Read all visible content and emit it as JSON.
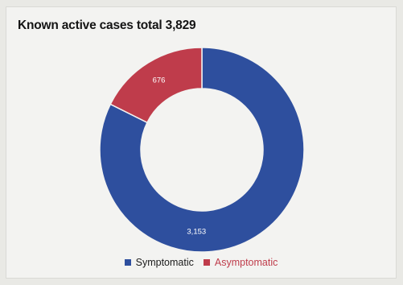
{
  "chart_data": {
    "type": "pie",
    "title": "Known active cases total 3,829",
    "categories": [
      "Symptomatic",
      "Asymptomatic"
    ],
    "values": [
      3153,
      676
    ],
    "value_labels": [
      "3,153",
      "676"
    ],
    "colors": [
      "#2e4f9e",
      "#bf3c4b"
    ],
    "donut": true,
    "legend": "bottom"
  }
}
